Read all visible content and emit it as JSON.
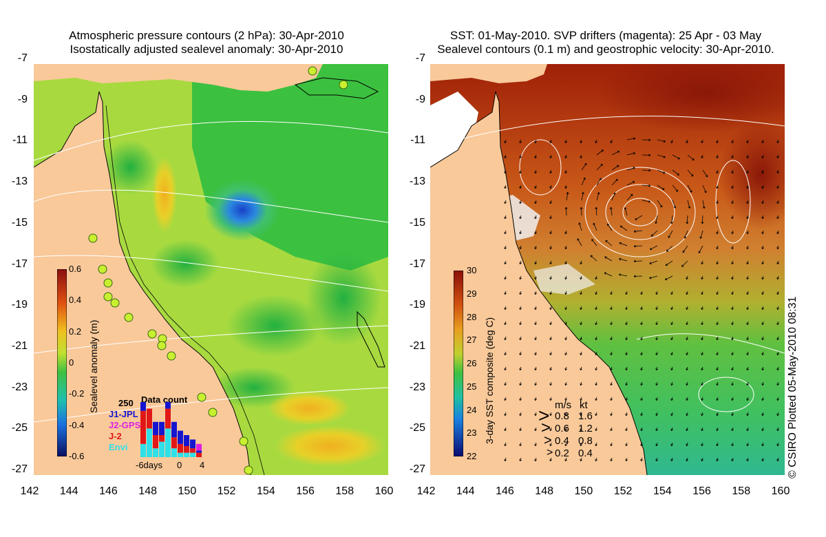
{
  "left_map": {
    "title_line1": "Atmospheric pressure contours (2 hPa): 30-Apr-2010",
    "title_line2": "Isostatically adjusted sealevel anomaly: 30-Apr-2010",
    "colorbar": {
      "label": "Sealevel anomaly (m)",
      "ticks": [
        "0.6",
        "0.4",
        "0.2",
        "0",
        "-0.2",
        "-0.4",
        "-0.6"
      ]
    },
    "data_count": {
      "title": "Data count",
      "max_label": "250",
      "sources": [
        {
          "name": "J1-JPL",
          "color": "#1515d0"
        },
        {
          "name": "J2-GPS",
          "color": "#e020e0"
        },
        {
          "name": "J-2",
          "color": "#e01818"
        },
        {
          "name": "Envi",
          "color": "#30e0e8"
        }
      ],
      "x_labels": [
        "-6days",
        "0",
        "4"
      ],
      "bars": [
        {
          "cyan": 60,
          "red": 150,
          "blue": 40
        },
        {
          "cyan": 130,
          "red": 90,
          "blue": 0
        },
        {
          "cyan": 40,
          "red": 60,
          "blue": 60
        },
        {
          "cyan": 70,
          "red": 30,
          "blue": 60
        },
        {
          "cyan": 130,
          "red": 90,
          "blue": 30
        },
        {
          "cyan": 40,
          "red": 50,
          "blue": 70
        },
        {
          "cyan": 20,
          "red": 40,
          "blue": 60
        },
        {
          "cyan": 20,
          "red": 30,
          "blue": 50
        },
        {
          "cyan": 20,
          "red": 20,
          "blue": 40
        },
        {
          "cyan": 0,
          "red": 20,
          "blue": 10,
          "magenta": 30
        }
      ]
    }
  },
  "right_map": {
    "title_line1": "SST: 01-May-2010. SVP drifters (magenta): 25 Apr - 03 May",
    "title_line2": "Sealevel contours (0.1 m) and geostrophic velocity: 30-Apr-2010.",
    "colorbar": {
      "label": "3-day SST composite (deg C)",
      "ticks": [
        "30",
        "29",
        "28",
        "27",
        "26",
        "25",
        "24",
        "23",
        "22"
      ]
    },
    "velocity_legend": {
      "header_ms": "m/s",
      "header_kt": "kt",
      "rows": [
        {
          "ms": "0.8",
          "kt": "1.6"
        },
        {
          "ms": "0.6",
          "kt": "1.2"
        },
        {
          "ms": "0.4",
          "kt": "0.8"
        },
        {
          "ms": "0.2",
          "kt": "0.4"
        }
      ]
    },
    "credit": "© CSIRO Plotted 05-May-2010 08:31"
  },
  "axes": {
    "y_ticks": [
      "-7",
      "-9",
      "-11",
      "-13",
      "-15",
      "-17",
      "-19",
      "-21",
      "-23",
      "-25",
      "-27"
    ],
    "x_ticks": [
      "142",
      "144",
      "146",
      "148",
      "150",
      "152",
      "154",
      "156",
      "158",
      "160"
    ]
  },
  "colors": {
    "land": "#f9c99a",
    "ocean_green": "#7ed23c",
    "ocean_yellowgreen": "#b8e03a",
    "eddy_blue": "#1a48c8",
    "sst_warm": "#b84010",
    "sst_hot": "#9a1a08"
  }
}
